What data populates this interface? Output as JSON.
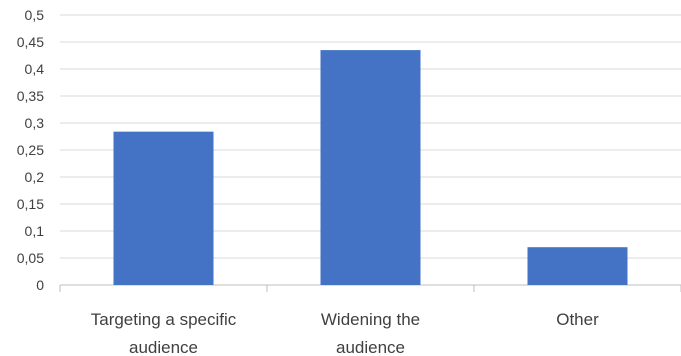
{
  "chart_data": {
    "type": "bar",
    "categories": [
      [
        "Targeting a specific",
        "audience"
      ],
      [
        "Widening the",
        "audience"
      ],
      [
        "Other"
      ]
    ],
    "values": [
      0.284,
      0.435,
      0.07
    ],
    "ylim": [
      0,
      0.5
    ],
    "yticks": [
      "0",
      "0,05",
      "0,1",
      "0,15",
      "0,2",
      "0,25",
      "0,3",
      "0,35",
      "0,4",
      "0,45",
      "0,5"
    ],
    "title": "",
    "xlabel": "",
    "ylabel": "",
    "grid": true,
    "legend": "none",
    "bar_color": "#4472C4"
  }
}
